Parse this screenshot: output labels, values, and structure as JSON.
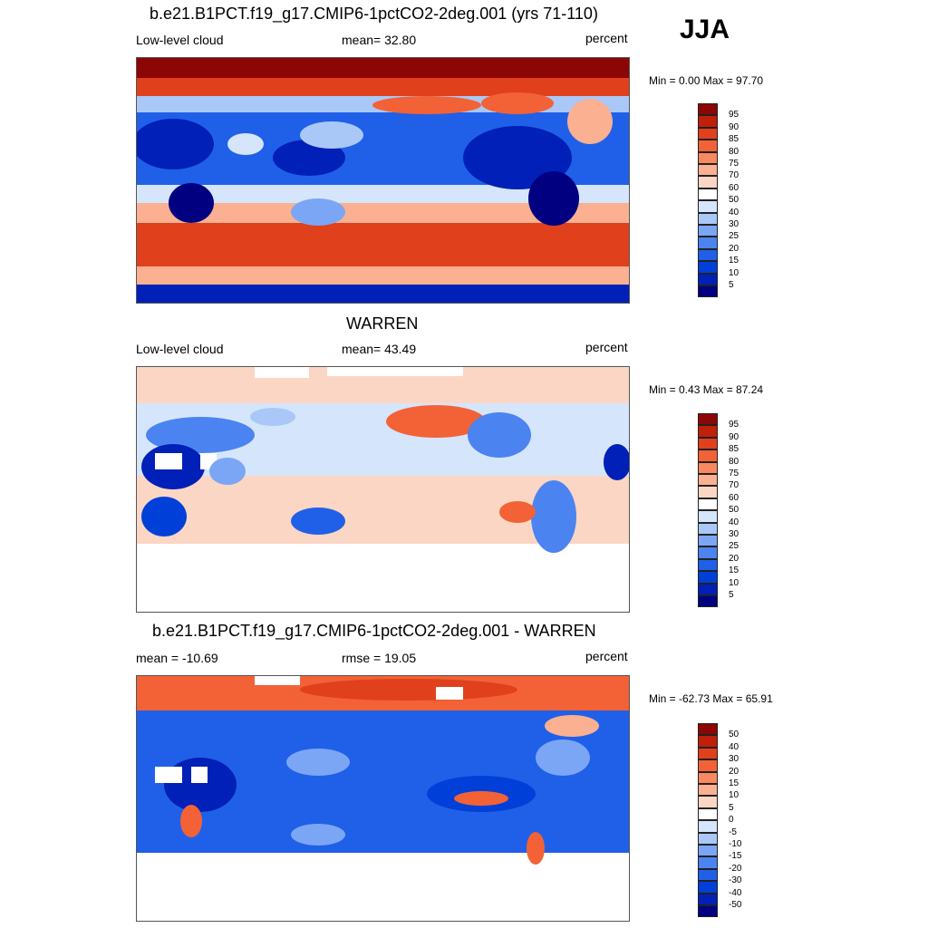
{
  "season": "JJA",
  "palette_abs": [
    "#000080",
    "#0020b8",
    "#0040d8",
    "#2060e8",
    "#4b84f0",
    "#7ba6f5",
    "#a9c8f8",
    "#d5e5fb",
    "#ffffff",
    "#fcd6c4",
    "#fab091",
    "#f8885f",
    "#f26236",
    "#e0401b",
    "#c01f0a",
    "#8c0606"
  ],
  "palette_diff": [
    "#000080",
    "#0020b8",
    "#0040d8",
    "#2060e8",
    "#4b84f0",
    "#7ba6f5",
    "#a9c8f8",
    "#d5e5fb",
    "#ffffff",
    "#fcd6c4",
    "#fab091",
    "#f8885f",
    "#f26236",
    "#e0401b",
    "#c01f0a",
    "#8c0606"
  ],
  "panels": [
    {
      "title": "b.e21.B1PCT.f19_g17.CMIP6-1pctCO2-2deg.001 (yrs 71-110)",
      "left_label": "Low-level cloud",
      "center_label": "mean=  32.80",
      "right_label": "percent",
      "minmax": "Min =   0.00 Max =  97.70",
      "colorbar_labels": [
        "95",
        "90",
        "85",
        "80",
        "75",
        "70",
        "60",
        "50",
        "40",
        "30",
        "25",
        "20",
        "15",
        "10",
        "5"
      ],
      "map_name": "model-cloud-map"
    },
    {
      "title": "WARREN",
      "left_label": "Low-level cloud",
      "center_label": "mean=  43.49",
      "right_label": "percent",
      "minmax": "Min =   0.43 Max =  87.24",
      "colorbar_labels": [
        "95",
        "90",
        "85",
        "80",
        "75",
        "70",
        "60",
        "50",
        "40",
        "30",
        "25",
        "20",
        "15",
        "10",
        "5"
      ],
      "map_name": "obs-cloud-map"
    },
    {
      "title": "b.e21.B1PCT.f19_g17.CMIP6-1pctCO2-2deg.001 - WARREN",
      "left_label": "mean = -10.69",
      "center_label": "rmse =  19.05",
      "right_label": "percent",
      "minmax": "Min = -62.73 Max =  65.91",
      "colorbar_labels": [
        "50",
        "40",
        "30",
        "20",
        "15",
        "10",
        "5",
        "0",
        "-5",
        "-10",
        "-15",
        "-20",
        "-30",
        "-40",
        "-50"
      ],
      "map_name": "difference-cloud-map"
    }
  ]
}
